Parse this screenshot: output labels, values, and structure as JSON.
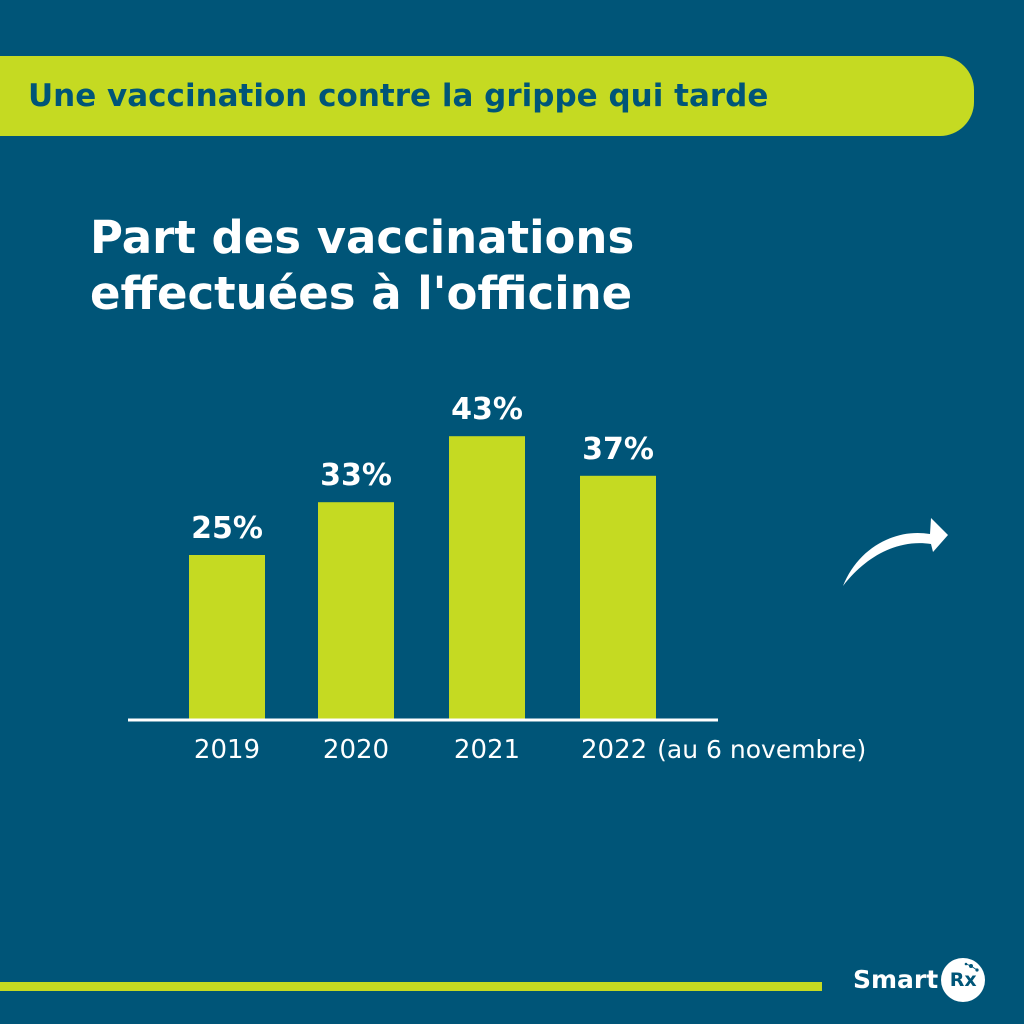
{
  "banner": {
    "title": "Une vaccination contre la grippe qui tarde"
  },
  "chart_data": {
    "type": "bar",
    "title": "Part des vaccinations effectuées à l'officine",
    "title_lines": [
      "Part des vaccinations",
      "effectuées à l'officine"
    ],
    "categories": [
      "2019",
      "2020",
      "2021",
      "2022"
    ],
    "category_notes": [
      "",
      "",
      "",
      "(au 6 novembre)"
    ],
    "values": [
      25,
      33,
      43,
      37
    ],
    "value_labels": [
      "25%",
      "33%",
      "43%",
      "37%"
    ],
    "unit": "%",
    "xlabel": "",
    "ylabel": "",
    "ylim": [
      0,
      50
    ],
    "grid": false,
    "legend": "none",
    "bar_color": "#c5da22"
  },
  "decor": {
    "arrow": "curved-arrow-right-icon"
  },
  "footer": {
    "logo_text": "Smart",
    "logo_badge": "Rx"
  },
  "colors": {
    "background": "#005578",
    "accent": "#c5da22",
    "text": "#ffffff"
  }
}
